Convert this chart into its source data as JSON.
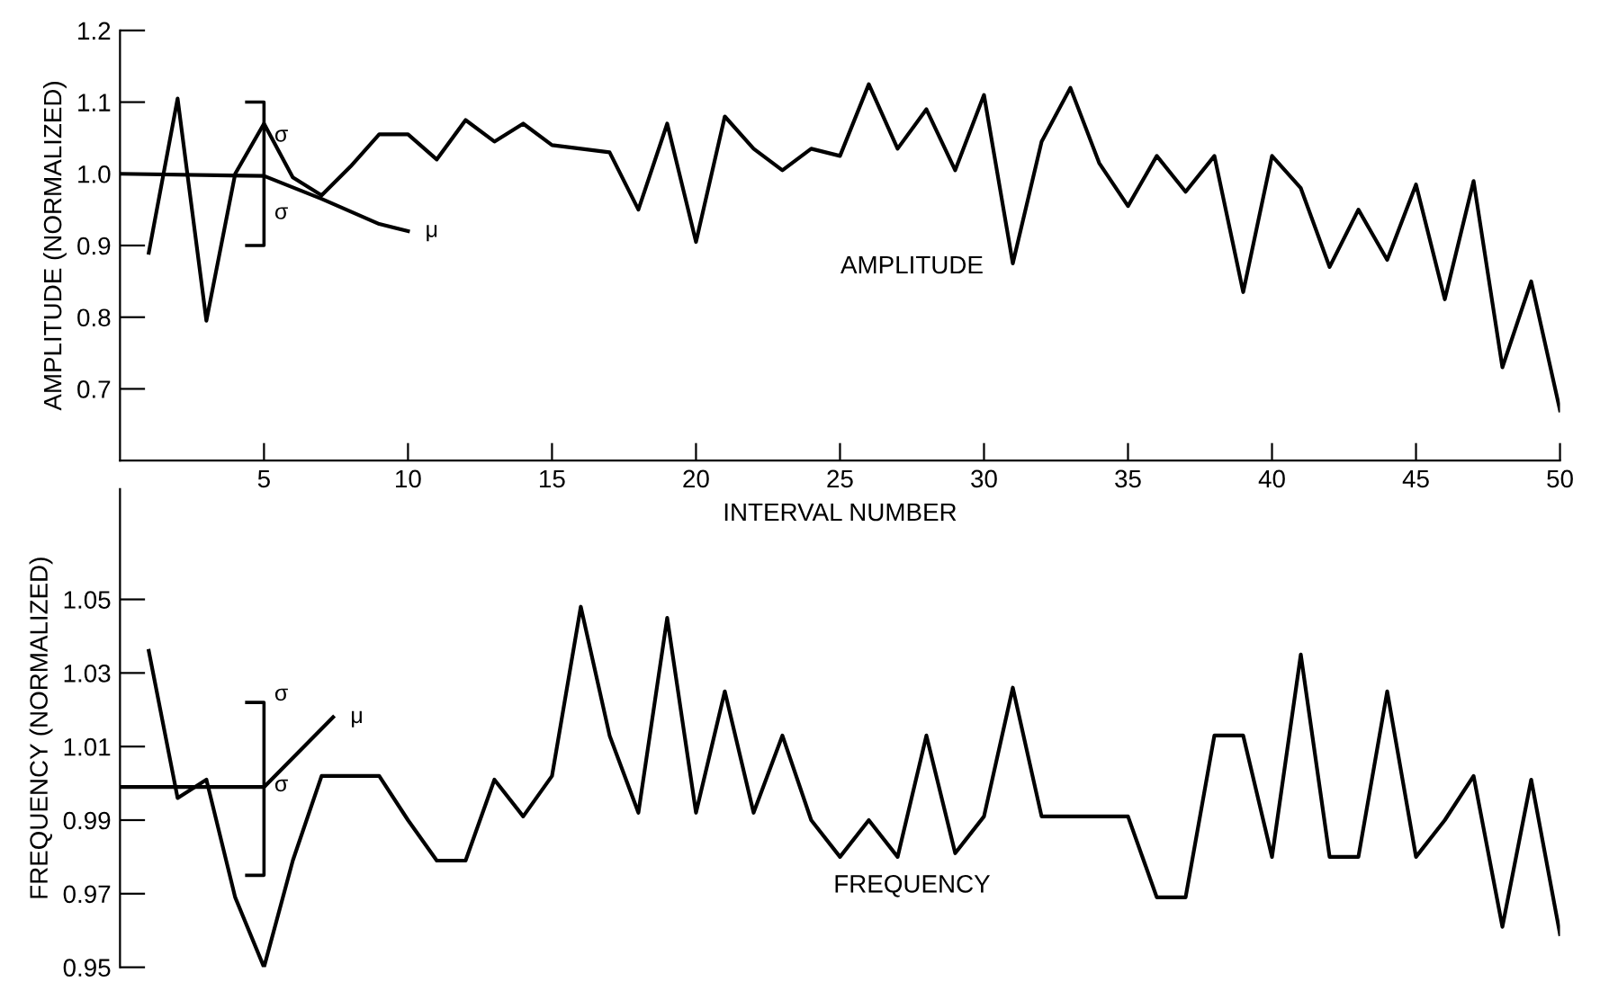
{
  "chart_data": [
    {
      "type": "line",
      "xlabel": "INTERVAL NUMBER",
      "ylabel": "AMPLITUDE (NORMALIZED)",
      "xlim": [
        0,
        50
      ],
      "ylim": [
        0.6,
        1.2
      ],
      "xticks": [
        5,
        10,
        15,
        20,
        25,
        30,
        35,
        40,
        45,
        50
      ],
      "yticks": [
        0.7,
        0.8,
        0.9,
        {
          "value": 1.0,
          "label": "1.0"
        },
        1.1,
        1.2
      ],
      "grid": false,
      "legend": false,
      "marker": "none",
      "line_style": "solid",
      "x": [
        1,
        2,
        3,
        4,
        5,
        6,
        7,
        8,
        9,
        10,
        11,
        12,
        13,
        14,
        15,
        16,
        17,
        18,
        19,
        20,
        21,
        22,
        23,
        24,
        25,
        26,
        27,
        28,
        29,
        30,
        31,
        32,
        33,
        34,
        35,
        36,
        37,
        38,
        39,
        40,
        41,
        42,
        43,
        44,
        45,
        46,
        47,
        48,
        49,
        50
      ],
      "series": [
        {
          "color": "#000000",
          "values": [
            0.89,
            1.105,
            0.795,
            1.0,
            1.07,
            0.995,
            0.97,
            1.01,
            1.055,
            1.055,
            1.02,
            1.075,
            1.045,
            1.07,
            1.04,
            1.035,
            1.03,
            0.95,
            1.07,
            0.905,
            1.08,
            1.035,
            1.005,
            1.035,
            1.025,
            1.125,
            1.035,
            1.09,
            1.005,
            1.11,
            0.875,
            1.045,
            1.12,
            1.015,
            0.955,
            1.025,
            0.975,
            1.025,
            0.835,
            1.025,
            0.98,
            0.87,
            0.95,
            0.88,
            0.985,
            0.825,
            0.99,
            0.73,
            0.85,
            0.67
          ]
        },
        {
          "name": "μ",
          "color": "#000000",
          "x": [
            0,
            5,
            7,
            9,
            10
          ],
          "values": [
            1.0,
            0.997,
            0.965,
            0.93,
            0.92
          ],
          "errors": [
            null,
            [
              0.9,
              1.1
            ],
            null,
            null,
            null
          ]
        }
      ],
      "annotations": [
        "AMPLITUDE",
        "σ",
        "σ"
      ]
    },
    {
      "type": "line",
      "ylabel": "FREQUENCY (NORMALIZED)",
      "xlim": [
        0,
        50
      ],
      "ylim": [
        0.95,
        1.08
      ],
      "yticks": [
        0.95,
        0.97,
        0.99,
        1.01,
        1.03,
        1.05
      ],
      "tick_labels": "y",
      "grid": false,
      "legend": false,
      "marker": "none",
      "line_style": "solid",
      "x": [
        1,
        2,
        3,
        4,
        5,
        6,
        7,
        8,
        9,
        10,
        11,
        12,
        13,
        14,
        15,
        16,
        17,
        18,
        19,
        20,
        21,
        22,
        23,
        24,
        25,
        26,
        27,
        28,
        29,
        30,
        31,
        32,
        33,
        34,
        35,
        36,
        37,
        38,
        39,
        40,
        41,
        42,
        43,
        44,
        45,
        46,
        47,
        48,
        49,
        50
      ],
      "series": [
        {
          "color": "#000000",
          "values": [
            1.036,
            0.996,
            1.001,
            0.969,
            0.95,
            0.979,
            1.002,
            1.002,
            1.002,
            0.99,
            0.979,
            0.979,
            1.001,
            0.991,
            1.002,
            1.048,
            1.013,
            0.992,
            1.045,
            0.992,
            1.025,
            0.992,
            1.013,
            0.99,
            0.98,
            0.99,
            0.98,
            1.013,
            0.981,
            0.991,
            1.026,
            0.991,
            0.991,
            0.991,
            0.991,
            0.969,
            0.969,
            1.013,
            1.013,
            0.98,
            1.035,
            0.98,
            0.98,
            1.025,
            0.98,
            0.99,
            1.002,
            0.961,
            1.001,
            0.959
          ]
        },
        {
          "name": "μ",
          "color": "#000000",
          "x": [
            0,
            5,
            7.4
          ],
          "values": [
            0.999,
            0.999,
            1.018
          ],
          "errors": [
            null,
            [
              0.975,
              1.022
            ],
            null
          ]
        }
      ],
      "annotations": [
        "FREQUENCY",
        "σ",
        "σ"
      ]
    }
  ]
}
